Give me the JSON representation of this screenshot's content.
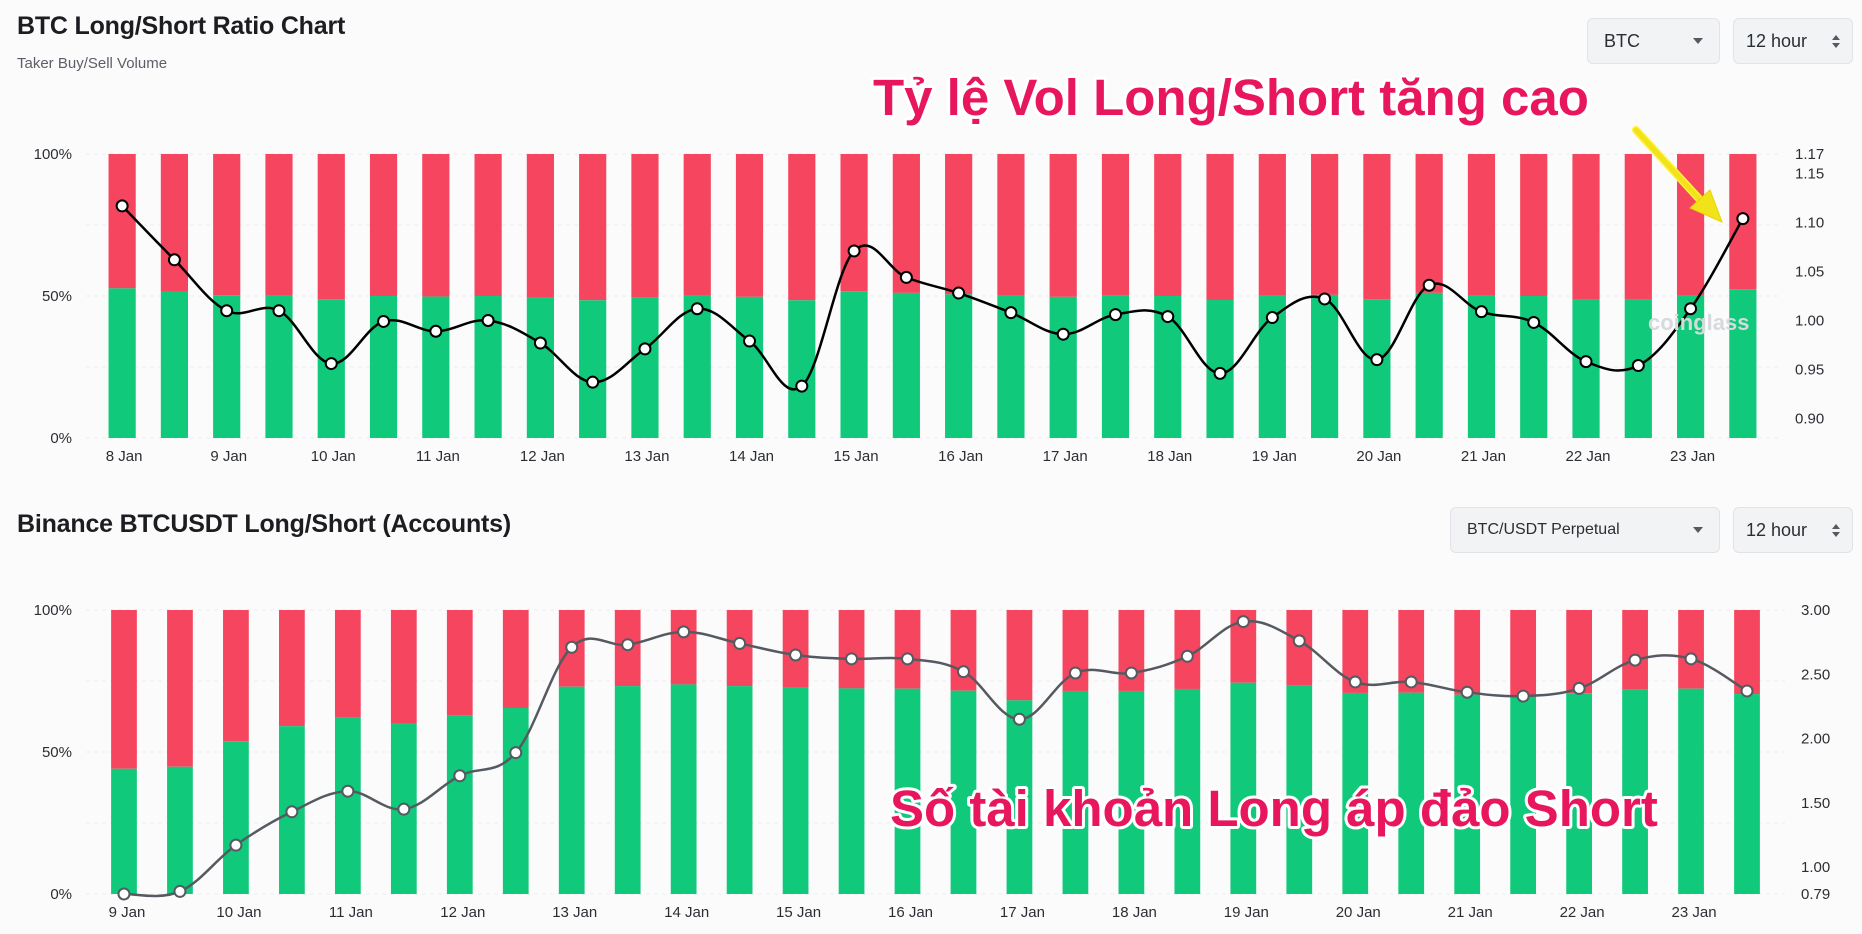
{
  "chart1": {
    "title": "BTC Long/Short Ratio Chart",
    "subtitle": "Taker Buy/Sell Volume",
    "coin_select": "BTC",
    "interval_select": "12 hour",
    "watermark": "coinglass",
    "callout": "Tỷ lệ Vol Long/Short tăng cao",
    "y_left_ticks": [
      "100%",
      "50%",
      "0%"
    ],
    "y_right_ticks": [
      1.17,
      1.15,
      1.1,
      1.05,
      1.0,
      0.95,
      0.9
    ],
    "x_labels": [
      "8 Jan",
      "9 Jan",
      "10 Jan",
      "11 Jan",
      "12 Jan",
      "13 Jan",
      "14 Jan",
      "15 Jan",
      "16 Jan",
      "17 Jan",
      "18 Jan",
      "19 Jan",
      "20 Jan",
      "21 Jan",
      "22 Jan",
      "23 Jan"
    ],
    "colors": {
      "long": "#10c97b",
      "short": "#f5455f",
      "line": "#000000"
    }
  },
  "chart2": {
    "title": "Binance BTCUSDT Long/Short (Accounts)",
    "pair_select": "BTC/USDT Perpetual",
    "interval_select": "12 hour",
    "callout": "Số tài khoản Long áp đảo Short",
    "y_left_ticks": [
      "100%",
      "50%",
      "0%"
    ],
    "y_right_ticks": [
      3.0,
      2.5,
      2.0,
      1.5,
      1.0,
      0.79
    ],
    "x_labels": [
      "9 Jan",
      "10 Jan",
      "11 Jan",
      "12 Jan",
      "13 Jan",
      "14 Jan",
      "15 Jan",
      "16 Jan",
      "17 Jan",
      "18 Jan",
      "19 Jan",
      "20 Jan",
      "21 Jan",
      "22 Jan",
      "23 Jan"
    ],
    "colors": {
      "long": "#10c97b",
      "short": "#f5455f",
      "line": "#555a61"
    }
  },
  "chart_data": [
    {
      "type": "bar",
      "title": "BTC Long/Short Ratio Chart",
      "subtitle": "Taker Buy/Sell Volume",
      "stacked": true,
      "ylim_left": [
        0,
        100
      ],
      "ylim_right": [
        0.88,
        1.17
      ],
      "categories": [
        "8 Jan",
        "",
        "9 Jan",
        "",
        "10 Jan",
        "",
        "11 Jan",
        "",
        "12 Jan",
        "",
        "13 Jan",
        "",
        "14 Jan",
        "",
        "15 Jan",
        "",
        "16 Jan",
        "",
        "17 Jan",
        "",
        "18 Jan",
        "",
        "19 Jan",
        "",
        "20 Jan",
        "",
        "21 Jan",
        "",
        "22 Jan",
        "",
        "23 Jan",
        ""
      ],
      "series": [
        {
          "values": [
            52.7,
            51.6,
            50.3,
            50.2,
            48.9,
            50.0,
            49.8,
            50.0,
            49.5,
            48.5,
            49.4,
            50.2,
            49.7,
            48.5,
            51.7,
            51.1,
            50.6,
            50.2,
            49.7,
            50.1,
            50.0,
            48.6,
            50.2,
            50.4,
            48.9,
            51.1,
            50.2,
            50.0,
            48.8,
            48.7,
            50.2,
            52.4
          ]
        },
        {
          "values": [
            47.3,
            48.4,
            49.7,
            49.8,
            51.1,
            50.0,
            50.2,
            50.0,
            50.5,
            51.5,
            50.6,
            49.8,
            50.3,
            51.5,
            48.3,
            48.9,
            49.4,
            49.8,
            50.3,
            49.9,
            50.0,
            51.4,
            49.8,
            49.6,
            51.1,
            48.9,
            49.8,
            50.0,
            51.2,
            51.3,
            49.8,
            47.6
          ]
        }
      ],
      "ratio": [
        1.117,
        1.062,
        1.01,
        1.01,
        0.956,
        0.999,
        0.989,
        1.0,
        0.977,
        0.937,
        0.971,
        1.012,
        0.979,
        0.933,
        1.071,
        1.044,
        1.028,
        1.008,
        0.986,
        1.006,
        1.004,
        0.946,
        1.003,
        1.022,
        0.96,
        1.036,
        1.009,
        0.998,
        0.958,
        0.954,
        1.012,
        1.104
      ]
    },
    {
      "type": "bar",
      "title": "Binance BTCUSDT Long/Short (Accounts)",
      "stacked": true,
      "ylim_left": [
        0,
        100
      ],
      "ylim_right": [
        0.79,
        3.0
      ],
      "categories": [
        "9 Jan",
        "",
        "10 Jan",
        "",
        "11 Jan",
        "",
        "12 Jan",
        "",
        "13 Jan",
        "",
        "14 Jan",
        "",
        "15 Jan",
        "",
        "16 Jan",
        "",
        "17 Jan",
        "",
        "18 Jan",
        "",
        "19 Jan",
        "",
        "20 Jan",
        "",
        "21 Jan",
        "",
        "22 Jan",
        "",
        "23 Jan",
        ""
      ],
      "series": [
        {
          "values": [
            44.1,
            44.8,
            53.8,
            59.1,
            62.1,
            59.9,
            63.0,
            65.5,
            73.0,
            73.2,
            73.8,
            73.2,
            72.6,
            72.4,
            72.3,
            71.6,
            68.2,
            71.5,
            71.5,
            72.2,
            74.4,
            73.3,
            70.8,
            70.9,
            70.2,
            69.9,
            70.7,
            71.9,
            72.3,
            70.4
          ]
        },
        {
          "values": [
            55.9,
            55.2,
            46.2,
            40.9,
            37.9,
            40.1,
            37.0,
            34.5,
            27.0,
            26.8,
            26.2,
            26.8,
            27.4,
            27.6,
            27.7,
            28.4,
            31.8,
            28.5,
            28.5,
            27.8,
            25.6,
            26.7,
            29.2,
            29.1,
            29.8,
            30.1,
            29.3,
            28.1,
            27.7,
            29.6
          ]
        }
      ],
      "ratio": [
        0.79,
        0.81,
        1.17,
        1.43,
        1.59,
        1.45,
        1.71,
        1.89,
        2.71,
        2.73,
        2.83,
        2.74,
        2.65,
        2.62,
        2.62,
        2.52,
        2.15,
        2.51,
        2.51,
        2.64,
        2.91,
        2.76,
        2.44,
        2.44,
        2.36,
        2.33,
        2.39,
        2.61,
        2.62,
        2.37
      ]
    }
  ]
}
